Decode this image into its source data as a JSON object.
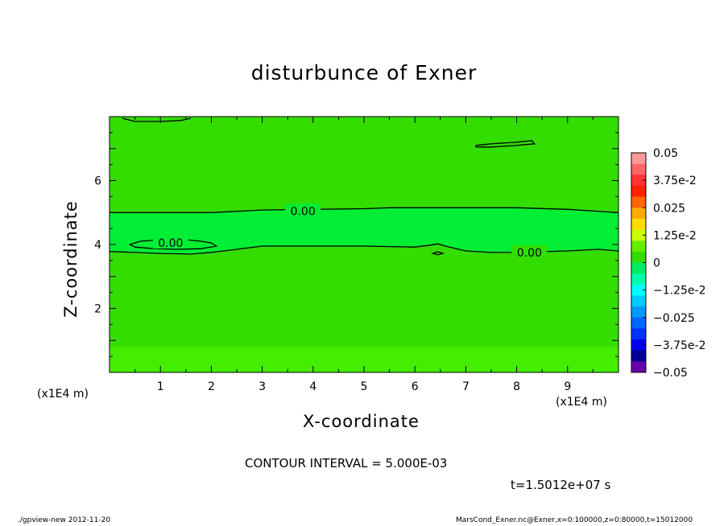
{
  "chart_data": {
    "type": "contour",
    "title": "disturbunce of Exner",
    "xlabel": "X-coordinate",
    "ylabel": "Z-coordinate",
    "xunit": "(x1E4 m)",
    "xlim": [
      0,
      10
    ],
    "ylim": [
      0,
      8
    ],
    "xticks": [
      "1",
      "2",
      "3",
      "4",
      "5",
      "6",
      "7",
      "8",
      "9"
    ],
    "yticks": [
      "2",
      "4",
      "6"
    ],
    "contour_label": "0.00",
    "contours": [
      {
        "name": "upper",
        "label_at": [
          0.32,
          5.05
        ],
        "points": [
          [
            0,
            5.0
          ],
          [
            1,
            5.0
          ],
          [
            2,
            5.0
          ],
          [
            3,
            5.08
          ],
          [
            4,
            5.1
          ],
          [
            5,
            5.12
          ],
          [
            5.5,
            5.15
          ],
          [
            6,
            5.15
          ],
          [
            7,
            5.15
          ],
          [
            8,
            5.15
          ],
          [
            9,
            5.1
          ],
          [
            10,
            5.0
          ]
        ]
      },
      {
        "name": "lower",
        "label_at": [
          0.63,
          3.75
        ],
        "points": [
          [
            0,
            3.78
          ],
          [
            0.5,
            3.75
          ],
          [
            1,
            3.72
          ],
          [
            1.6,
            3.7
          ],
          [
            2,
            3.75
          ],
          [
            2.5,
            3.85
          ],
          [
            3,
            3.95
          ],
          [
            4,
            3.95
          ],
          [
            5,
            3.95
          ],
          [
            6,
            3.92
          ],
          [
            6.3,
            3.98
          ],
          [
            6.45,
            4.02
          ],
          [
            6.6,
            3.95
          ],
          [
            7,
            3.8
          ],
          [
            7.5,
            3.75
          ],
          [
            8,
            3.75
          ],
          [
            9,
            3.8
          ],
          [
            9.6,
            3.85
          ],
          [
            10,
            3.8
          ]
        ]
      },
      {
        "name": "closed-left",
        "closed": true,
        "points": [
          [
            0.4,
            4.0
          ],
          [
            0.6,
            4.1
          ],
          [
            1,
            4.15
          ],
          [
            1.5,
            4.15
          ],
          [
            1.8,
            4.1
          ],
          [
            2.0,
            4.05
          ],
          [
            2.1,
            3.95
          ],
          [
            1.8,
            3.87
          ],
          [
            1.3,
            3.85
          ],
          [
            0.8,
            3.88
          ],
          [
            0.5,
            3.92
          ]
        ]
      },
      {
        "name": "closed-small",
        "closed": true,
        "points": [
          [
            6.35,
            3.72
          ],
          [
            6.45,
            3.77
          ],
          [
            6.55,
            3.72
          ],
          [
            6.45,
            3.68
          ]
        ]
      },
      {
        "name": "closed-top-right",
        "closed": true,
        "points": [
          [
            7.2,
            7.1
          ],
          [
            7.5,
            7.15
          ],
          [
            8,
            7.2
          ],
          [
            8.3,
            7.25
          ],
          [
            8.35,
            7.15
          ],
          [
            8.0,
            7.1
          ],
          [
            7.5,
            7.05
          ],
          [
            7.2,
            7.05
          ]
        ]
      },
      {
        "name": "top-left-edge",
        "closed": false,
        "points": [
          [
            0.25,
            7.95
          ],
          [
            0.5,
            7.85
          ],
          [
            1,
            7.85
          ],
          [
            1.4,
            7.88
          ],
          [
            1.6,
            7.95
          ]
        ]
      }
    ],
    "colorbar": {
      "labels": [
        "0.05",
        "3.75e-2",
        "0.025",
        "1.25e-2",
        "0",
        "−1.25e-2",
        "−0.025",
        "−3.75e-2",
        "−0.05"
      ],
      "colors_top_to_bottom": [
        "#ff9999",
        "#ff6666",
        "#ff3333",
        "#ff2200",
        "#ff6600",
        "#ffaa00",
        "#ffdd00",
        "#ccff00",
        "#66ee00",
        "#33dd00",
        "#00ee66",
        "#00ffaa",
        "#00ffff",
        "#00ccff",
        "#0099ff",
        "#0066ff",
        "#0033ff",
        "#0000ee",
        "#000099",
        "#6600aa"
      ]
    },
    "fill_colors": {
      "main": "#33dd00",
      "band": "#00ee33",
      "bottom": "#44ee00"
    },
    "annotation_interval": "CONTOUR INTERVAL = 5.000E-03",
    "time": "t=1.5012e+07 s"
  },
  "footer": {
    "left": "./gpview-new   2012-11-20",
    "right": "MarsCond_Exner.nc@Exner,x=0:100000,z=0:80000,t=15012000"
  }
}
